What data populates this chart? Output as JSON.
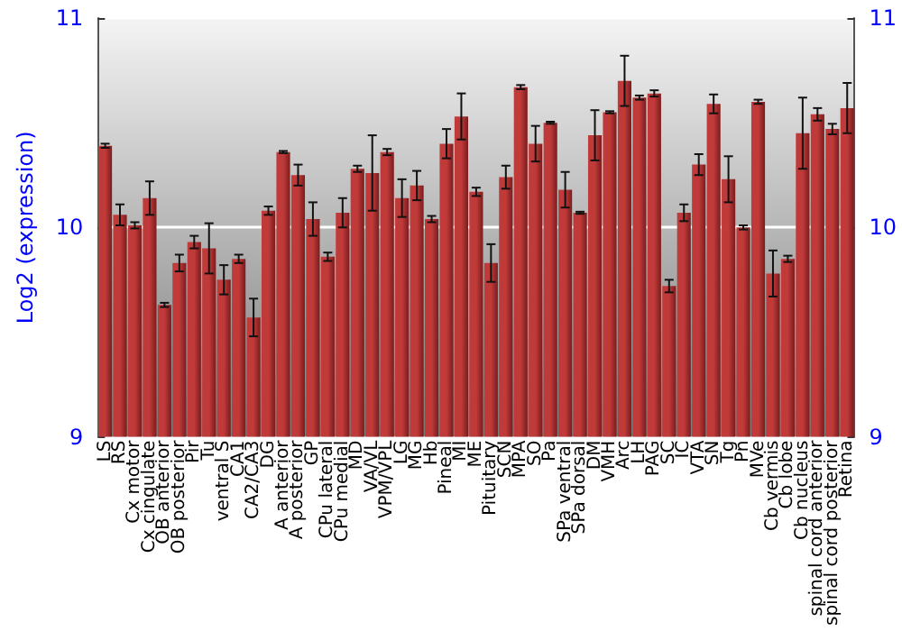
{
  "chart_data": {
    "type": "bar",
    "ylabel": "Log2 (expression)",
    "categories": [
      "LS",
      "RS",
      "Cx motor",
      "Cx cingulate",
      "OB anterior",
      "OB posterior",
      "Pir",
      "Tu",
      "ventral S",
      "CA1",
      "CA2/CA3",
      "DG",
      "A anterior",
      "A posterior",
      "GP",
      "CPu lateral",
      "CPu medial",
      "MD",
      "VA/VL",
      "VPM/VPL",
      "LG",
      "MG",
      "Hb",
      "Pineal",
      "MI",
      "ME",
      "Pituitary",
      "SCN",
      "MPA",
      "SO",
      "Pa",
      "SPa ventral",
      "SPa dorsal",
      "DM",
      "VMH",
      "Arc",
      "LH",
      "PAG",
      "SC",
      "IC",
      "VTA",
      "SN",
      "Tg",
      "Pn",
      "MVe",
      "Cb vermis",
      "Cb lobe",
      "Cb nucleus",
      "spinal cord anterior",
      "spinal cord posterior",
      "Retina"
    ],
    "values": [
      10.39,
      10.06,
      10.01,
      10.14,
      9.63,
      9.83,
      9.93,
      9.9,
      9.75,
      9.85,
      9.57,
      10.08,
      10.36,
      10.25,
      10.04,
      9.86,
      10.07,
      10.28,
      10.26,
      10.36,
      10.14,
      10.2,
      10.04,
      10.4,
      10.53,
      10.17,
      9.83,
      10.24,
      10.67,
      10.4,
      10.5,
      10.18,
      10.07,
      10.44,
      10.55,
      10.7,
      10.62,
      10.64,
      9.72,
      10.07,
      10.3,
      10.59,
      10.23,
      10.0,
      10.6,
      9.78,
      9.85,
      10.45,
      10.54,
      10.47,
      10.57
    ],
    "errors": [
      0.01,
      0.05,
      0.015,
      0.08,
      0.01,
      0.04,
      0.03,
      0.12,
      0.07,
      0.02,
      0.09,
      0.02,
      0.005,
      0.05,
      0.08,
      0.02,
      0.07,
      0.015,
      0.18,
      0.015,
      0.09,
      0.07,
      0.015,
      0.07,
      0.11,
      0.02,
      0.09,
      0.055,
      0.01,
      0.085,
      0.005,
      0.085,
      0.005,
      0.12,
      0.005,
      0.12,
      0.01,
      0.015,
      0.03,
      0.04,
      0.05,
      0.045,
      0.11,
      0.01,
      0.01,
      0.11,
      0.015,
      0.17,
      0.03,
      0.025,
      0.12
    ],
    "color": "#c03a3a",
    "ylim": [
      9,
      11
    ],
    "yticks": [
      9,
      10,
      11
    ],
    "y2lim": [
      9,
      11
    ],
    "y2ticks": [
      9,
      10,
      11
    ],
    "grid": "y"
  }
}
